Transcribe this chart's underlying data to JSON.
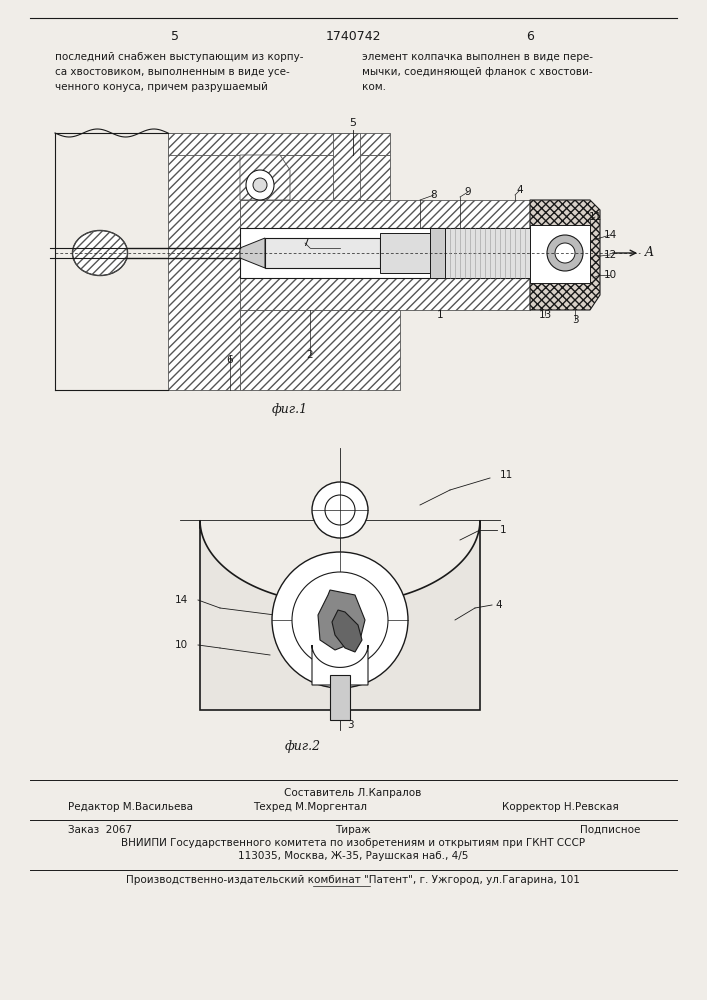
{
  "page_number_left": "5",
  "page_number_center": "1740742",
  "page_number_right": "6",
  "text_left": "последний снабжен выступающим из корпу-\nса хвостовиком, выполненным в виде усе-\nченного конуса, причем разрушаемый",
  "text_right": "элемент колпачка выполнен в виде пере-\nмычки, соединяющей фланок с хвостови-\nком.",
  "fig1_label": "фиг.1",
  "fig2_label": "фиг.2",
  "fig1_number": "5",
  "editor_line": "Редактор М.Васильева",
  "composer_line1": "Составитель Л.Капралов",
  "composer_line2": "Техред М.Моргентал",
  "corrector_line": "Корректор Н.Ревская",
  "order_line": "Заказ  2067",
  "tirazh_line": "Тираж",
  "podpisnoe_line": "Подписное",
  "vniip_line": "ВНИИПИ Государственного комитета по изобретениям и открытиям при ГКНТ СССР",
  "address_line": "113035, Москва, Ж-35, Раушская наб., 4/5",
  "patent_line": "Производственно-издательский комбинат \"Патент\", г. Ужгород, ул.Гагарина, 101",
  "bg_color": "#f0ede8",
  "line_color": "#1a1a1a",
  "hatch_color": "#444444"
}
